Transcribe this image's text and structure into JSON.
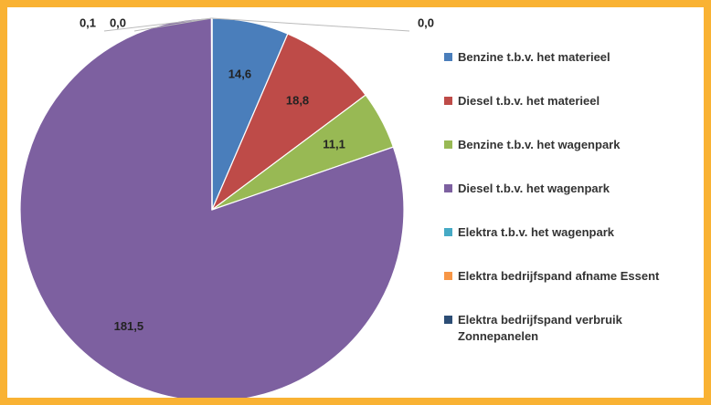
{
  "chart_data": {
    "type": "pie",
    "categories": [
      "Benzine t.b.v. het materieel",
      "Diesel t.b.v. het materieel",
      "Benzine t.b.v. het wagenpark",
      "Diesel t.b.v. het wagenpark",
      "Elektra t.b.v. het wagenpark",
      "Elektra bedrijfspand afname Essent",
      "Elektra bedrijfspand verbruik Zonnepanelen"
    ],
    "values": [
      14.6,
      18.8,
      11.1,
      181.5,
      0.1,
      0.0,
      0.0
    ],
    "value_labels": [
      "14,6",
      "18,8",
      "11,1",
      "181,5",
      "0,1",
      "0,0",
      "0,0"
    ],
    "colors": [
      "#4a7ebb",
      "#be4b48",
      "#98b954",
      "#7d60a0",
      "#46aac5",
      "#f79646",
      "#2c4d75"
    ],
    "legend": "right"
  }
}
